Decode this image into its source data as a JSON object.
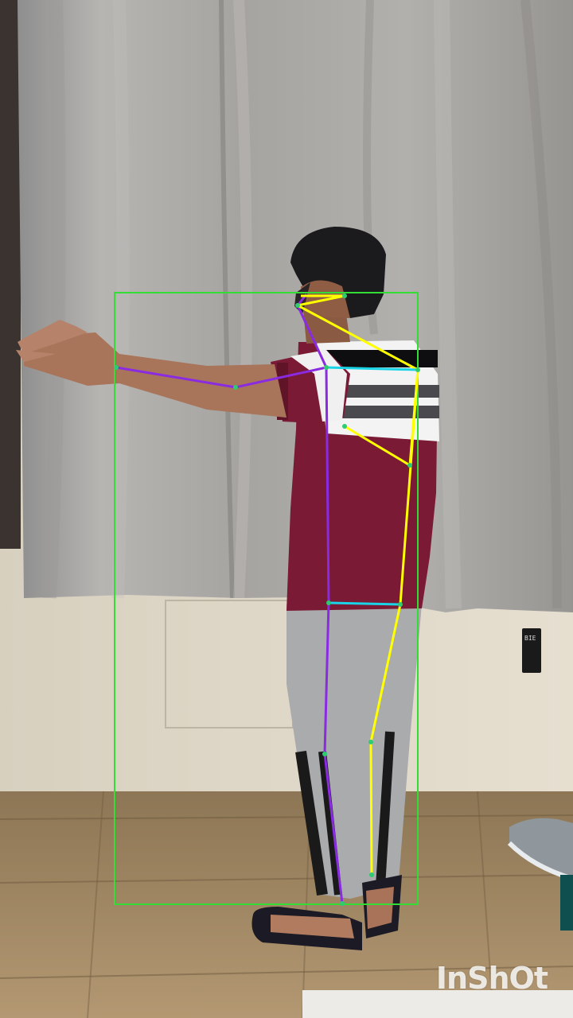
{
  "watermark": {
    "text": "InShOt"
  },
  "wall_sign": {
    "text": "BIE"
  },
  "overlay": {
    "bbox_color": "#33dd33",
    "left_side_color": "#8a2be2",
    "right_side_color": "#ffff00",
    "cross_link_color": "#19d3e6",
    "keypoint_color": "#2ecc71"
  }
}
